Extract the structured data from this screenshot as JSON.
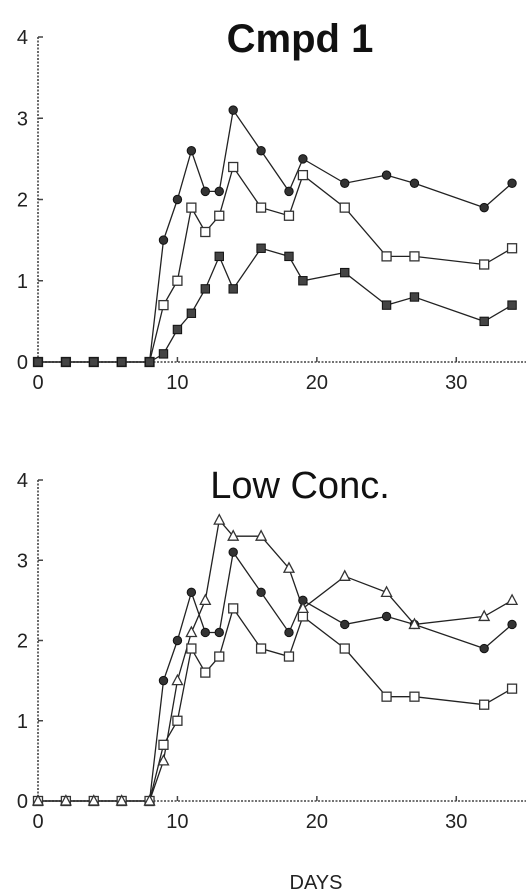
{
  "chart_data": [
    {
      "type": "line",
      "title": "Cmpd 1",
      "xlabel": "",
      "ylabel": "",
      "xlim": [
        0,
        35
      ],
      "ylim": [
        0,
        4
      ],
      "x_ticks": [
        0,
        10,
        20,
        30
      ],
      "y_ticks": [
        0,
        1,
        2,
        3,
        4
      ],
      "grid": false,
      "series": [
        {
          "marker": "filled-circle",
          "points": [
            [
              0,
              0
            ],
            [
              2,
              0
            ],
            [
              4,
              0
            ],
            [
              6,
              0
            ],
            [
              8,
              0
            ],
            [
              9,
              1.5
            ],
            [
              10,
              2.0
            ],
            [
              11,
              2.6
            ],
            [
              12,
              2.1
            ],
            [
              13,
              2.1
            ],
            [
              14,
              3.1
            ],
            [
              16,
              2.6
            ],
            [
              18,
              2.1
            ],
            [
              19,
              2.5
            ],
            [
              22,
              2.2
            ],
            [
              25,
              2.3
            ],
            [
              27,
              2.2
            ],
            [
              32,
              1.9
            ],
            [
              34,
              2.2
            ]
          ]
        },
        {
          "marker": "open-square",
          "points": [
            [
              0,
              0
            ],
            [
              2,
              0
            ],
            [
              4,
              0
            ],
            [
              6,
              0
            ],
            [
              8,
              0
            ],
            [
              9,
              0.7
            ],
            [
              10,
              1.0
            ],
            [
              11,
              1.9
            ],
            [
              12,
              1.6
            ],
            [
              13,
              1.8
            ],
            [
              14,
              2.4
            ],
            [
              16,
              1.9
            ],
            [
              18,
              1.8
            ],
            [
              19,
              2.3
            ],
            [
              22,
              1.9
            ],
            [
              25,
              1.3
            ],
            [
              27,
              1.3
            ],
            [
              32,
              1.2
            ],
            [
              34,
              1.4
            ]
          ]
        },
        {
          "marker": "filled-square",
          "points": [
            [
              0,
              0
            ],
            [
              2,
              0
            ],
            [
              4,
              0
            ],
            [
              6,
              0
            ],
            [
              8,
              0
            ],
            [
              9,
              0.1
            ],
            [
              10,
              0.4
            ],
            [
              11,
              0.6
            ],
            [
              12,
              0.9
            ],
            [
              13,
              1.3
            ],
            [
              14,
              0.9
            ],
            [
              16,
              1.4
            ],
            [
              18,
              1.3
            ],
            [
              19,
              1.0
            ],
            [
              22,
              1.1
            ],
            [
              25,
              0.7
            ],
            [
              27,
              0.8
            ],
            [
              32,
              0.5
            ],
            [
              34,
              0.7
            ]
          ]
        }
      ]
    },
    {
      "type": "line",
      "title": "Low Conc.",
      "xlabel": "DAYS",
      "ylabel": "",
      "xlim": [
        0,
        35
      ],
      "ylim": [
        0,
        4
      ],
      "x_ticks": [
        0,
        10,
        20,
        30
      ],
      "y_ticks": [
        0,
        1,
        2,
        3,
        4
      ],
      "grid": false,
      "series": [
        {
          "marker": "filled-circle",
          "points": [
            [
              0,
              0
            ],
            [
              2,
              0
            ],
            [
              4,
              0
            ],
            [
              6,
              0
            ],
            [
              8,
              0
            ],
            [
              9,
              1.5
            ],
            [
              10,
              2.0
            ],
            [
              11,
              2.6
            ],
            [
              12,
              2.1
            ],
            [
              13,
              2.1
            ],
            [
              14,
              3.1
            ],
            [
              16,
              2.6
            ],
            [
              18,
              2.1
            ],
            [
              19,
              2.5
            ],
            [
              22,
              2.2
            ],
            [
              25,
              2.3
            ],
            [
              27,
              2.2
            ],
            [
              32,
              1.9
            ],
            [
              34,
              2.2
            ]
          ]
        },
        {
          "marker": "open-square",
          "points": [
            [
              0,
              0
            ],
            [
              2,
              0
            ],
            [
              4,
              0
            ],
            [
              6,
              0
            ],
            [
              8,
              0
            ],
            [
              9,
              0.7
            ],
            [
              10,
              1.0
            ],
            [
              11,
              1.9
            ],
            [
              12,
              1.6
            ],
            [
              13,
              1.8
            ],
            [
              14,
              2.4
            ],
            [
              16,
              1.9
            ],
            [
              18,
              1.8
            ],
            [
              19,
              2.3
            ],
            [
              22,
              1.9
            ],
            [
              25,
              1.3
            ],
            [
              27,
              1.3
            ],
            [
              32,
              1.2
            ],
            [
              34,
              1.4
            ]
          ]
        },
        {
          "marker": "open-triangle",
          "points": [
            [
              0,
              0
            ],
            [
              2,
              0
            ],
            [
              4,
              0
            ],
            [
              6,
              0
            ],
            [
              8,
              0
            ],
            [
              9,
              0.5
            ],
            [
              10,
              1.5
            ],
            [
              11,
              2.1
            ],
            [
              12,
              2.5
            ],
            [
              13,
              3.5
            ],
            [
              14,
              3.3
            ],
            [
              16,
              3.3
            ],
            [
              18,
              2.9
            ],
            [
              19,
              2.4
            ],
            [
              22,
              2.8
            ],
            [
              25,
              2.6
            ],
            [
              27,
              2.2
            ],
            [
              32,
              2.3
            ],
            [
              34,
              2.5
            ]
          ]
        }
      ]
    }
  ]
}
